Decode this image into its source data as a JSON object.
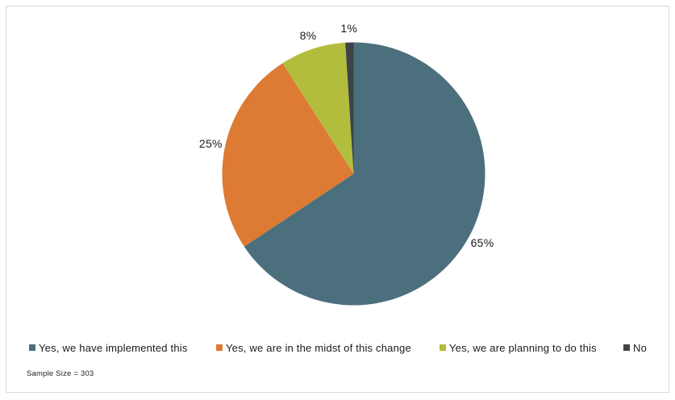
{
  "chart_data": {
    "type": "pie",
    "title": "",
    "slices": [
      {
        "label": "Yes, we have implemented this",
        "value": 65,
        "display": "65%",
        "color": "#4c6f7d"
      },
      {
        "label": "Yes, we are in the midst of this change",
        "value": 25,
        "display": "25%",
        "color": "#dd7a33"
      },
      {
        "label": "Yes, we are planning to do this",
        "value": 8,
        "display": "8%",
        "color": "#b3bd3d"
      },
      {
        "label": "No",
        "value": 1,
        "display": "1%",
        "color": "#3e4347"
      }
    ],
    "start_angle_deg": 0,
    "direction": "clockwise",
    "data_labels": "percent-outside",
    "legend_position": "bottom",
    "grid": false
  },
  "footnote": "Sample Size = 303"
}
